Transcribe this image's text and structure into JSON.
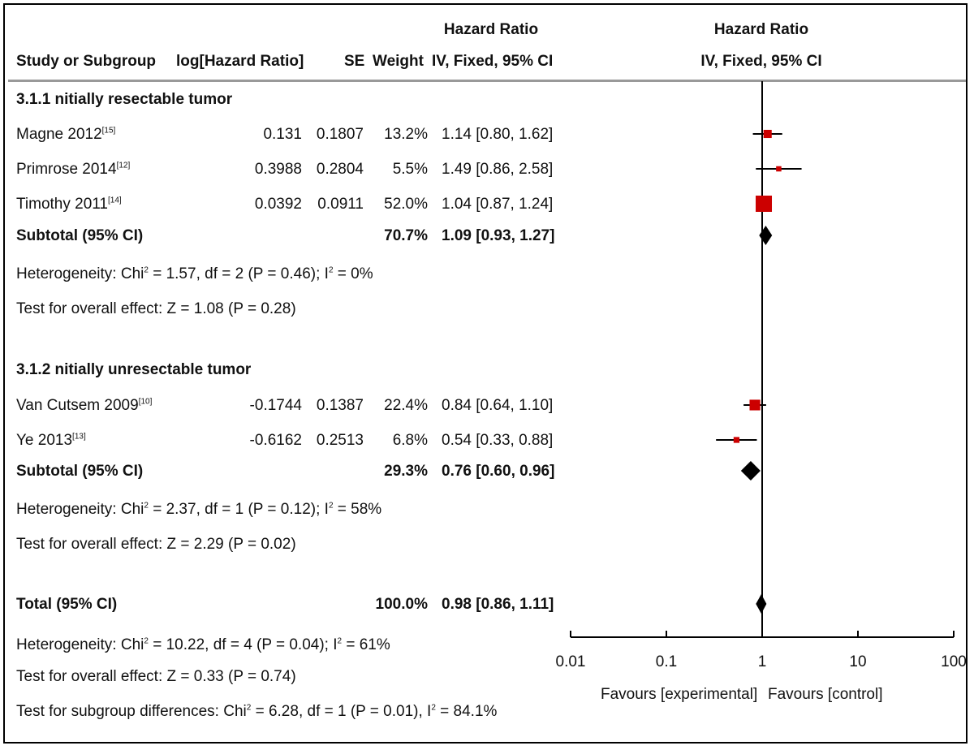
{
  "header": {
    "col_study": "Study or Subgroup",
    "col_loghr": "log[Hazard Ratio]",
    "col_se": "SE",
    "col_weight": "Weight",
    "col_hr_title": "Hazard Ratio",
    "col_hr_method": "IV, Fixed, 95% CI",
    "plot_title": "Hazard Ratio",
    "plot_method": "IV, Fixed, 95% CI"
  },
  "groups": [
    {
      "title": "3.1.1 nitially resectable tumor",
      "studies": [
        {
          "name": "Magne 2012",
          "ref": "[15]",
          "loghr": "0.131",
          "se": "0.1807",
          "weight": "13.2%",
          "ci_text": "1.14 [0.80, 1.62]"
        },
        {
          "name": "Primrose 2014",
          "ref": "[12]",
          "loghr": "0.3988",
          "se": "0.2804",
          "weight": "5.5%",
          "ci_text": "1.49 [0.86, 2.58]"
        },
        {
          "name": "Timothy 2011",
          "ref": "[14]",
          "loghr": "0.0392",
          "se": "0.0911",
          "weight": "52.0%",
          "ci_text": "1.04 [0.87, 1.24]"
        }
      ],
      "subtotal": {
        "label": "Subtotal (95% CI)",
        "weight": "70.7%",
        "ci_text": "1.09 [0.93, 1.27]"
      },
      "heterogeneity": {
        "pre": "Heterogeneity: Chi",
        "mid": " = 1.57, df = 2 (P = 0.46); I",
        "post": " = 0%"
      },
      "overall": "Test for overall effect: Z = 1.08 (P = 0.28)"
    },
    {
      "title": "3.1.2 nitially unresectable tumor",
      "studies": [
        {
          "name": "Van Cutsem 2009",
          "ref": "[10]",
          "loghr": "-0.1744",
          "se": "0.1387",
          "weight": "22.4%",
          "ci_text": "0.84 [0.64, 1.10]"
        },
        {
          "name": "Ye 2013",
          "ref": "[13]",
          "loghr": "-0.6162",
          "se": "0.2513",
          "weight": "6.8%",
          "ci_text": "0.54 [0.33, 0.88]"
        }
      ],
      "subtotal": {
        "label": "Subtotal (95% CI)",
        "weight": "29.3%",
        "ci_text": "0.76 [0.60, 0.96]"
      },
      "heterogeneity": {
        "pre": "Heterogeneity: Chi",
        "mid": " = 2.37, df = 1 (P = 0.12); I",
        "post": " = 58%"
      },
      "overall": "Test for overall effect: Z = 2.29 (P = 0.02)"
    }
  ],
  "total": {
    "label": "Total (95% CI)",
    "weight": "100.0%",
    "ci_text": "0.98 [0.86, 1.11]",
    "heterogeneity": {
      "pre": "Heterogeneity: Chi",
      "mid": " = 10.22, df = 4 (P = 0.04); I",
      "post": " = 61%"
    },
    "overall": "Test for overall effect: Z = 0.33 (P = 0.74)",
    "subgroup_diff": {
      "pre": "Test for subgroup differences: Chi",
      "mid": " = 6.28, df = 1 (P = 0.01), I",
      "post": " = 84.1%"
    }
  },
  "axis": {
    "favours_left": "Favours [experimental]",
    "favours_right": "Favours [control]"
  },
  "sup2": "2",
  "colors": {
    "marker": "#cc0000",
    "diamond": "#000000",
    "rule": "#999999"
  },
  "chart_data": {
    "type": "forest",
    "scale": "log",
    "xlim": [
      0.01,
      100
    ],
    "ticks": [
      0.01,
      0.1,
      1,
      10,
      100
    ],
    "tick_labels": [
      "0.01",
      "0.1",
      "1",
      "10",
      "100"
    ],
    "reference_line": 1,
    "studies": [
      {
        "name": "Magne 2012",
        "hr": 1.14,
        "lo": 0.8,
        "hi": 1.62,
        "weight": 13.2
      },
      {
        "name": "Primrose 2014",
        "hr": 1.49,
        "lo": 0.86,
        "hi": 2.58,
        "weight": 5.5
      },
      {
        "name": "Timothy 2011",
        "hr": 1.04,
        "lo": 0.87,
        "hi": 1.24,
        "weight": 52.0
      },
      {
        "name": "Van Cutsem 2009",
        "hr": 0.84,
        "lo": 0.64,
        "hi": 1.1,
        "weight": 22.4
      },
      {
        "name": "Ye 2013",
        "hr": 0.54,
        "lo": 0.33,
        "hi": 0.88,
        "weight": 6.8
      }
    ],
    "diamonds": [
      {
        "name": "Subtotal 3.1.1",
        "hr": 1.09,
        "lo": 0.93,
        "hi": 1.27
      },
      {
        "name": "Subtotal 3.1.2",
        "hr": 0.76,
        "lo": 0.6,
        "hi": 0.96
      },
      {
        "name": "Total",
        "hr": 0.98,
        "lo": 0.86,
        "hi": 1.11
      }
    ]
  }
}
